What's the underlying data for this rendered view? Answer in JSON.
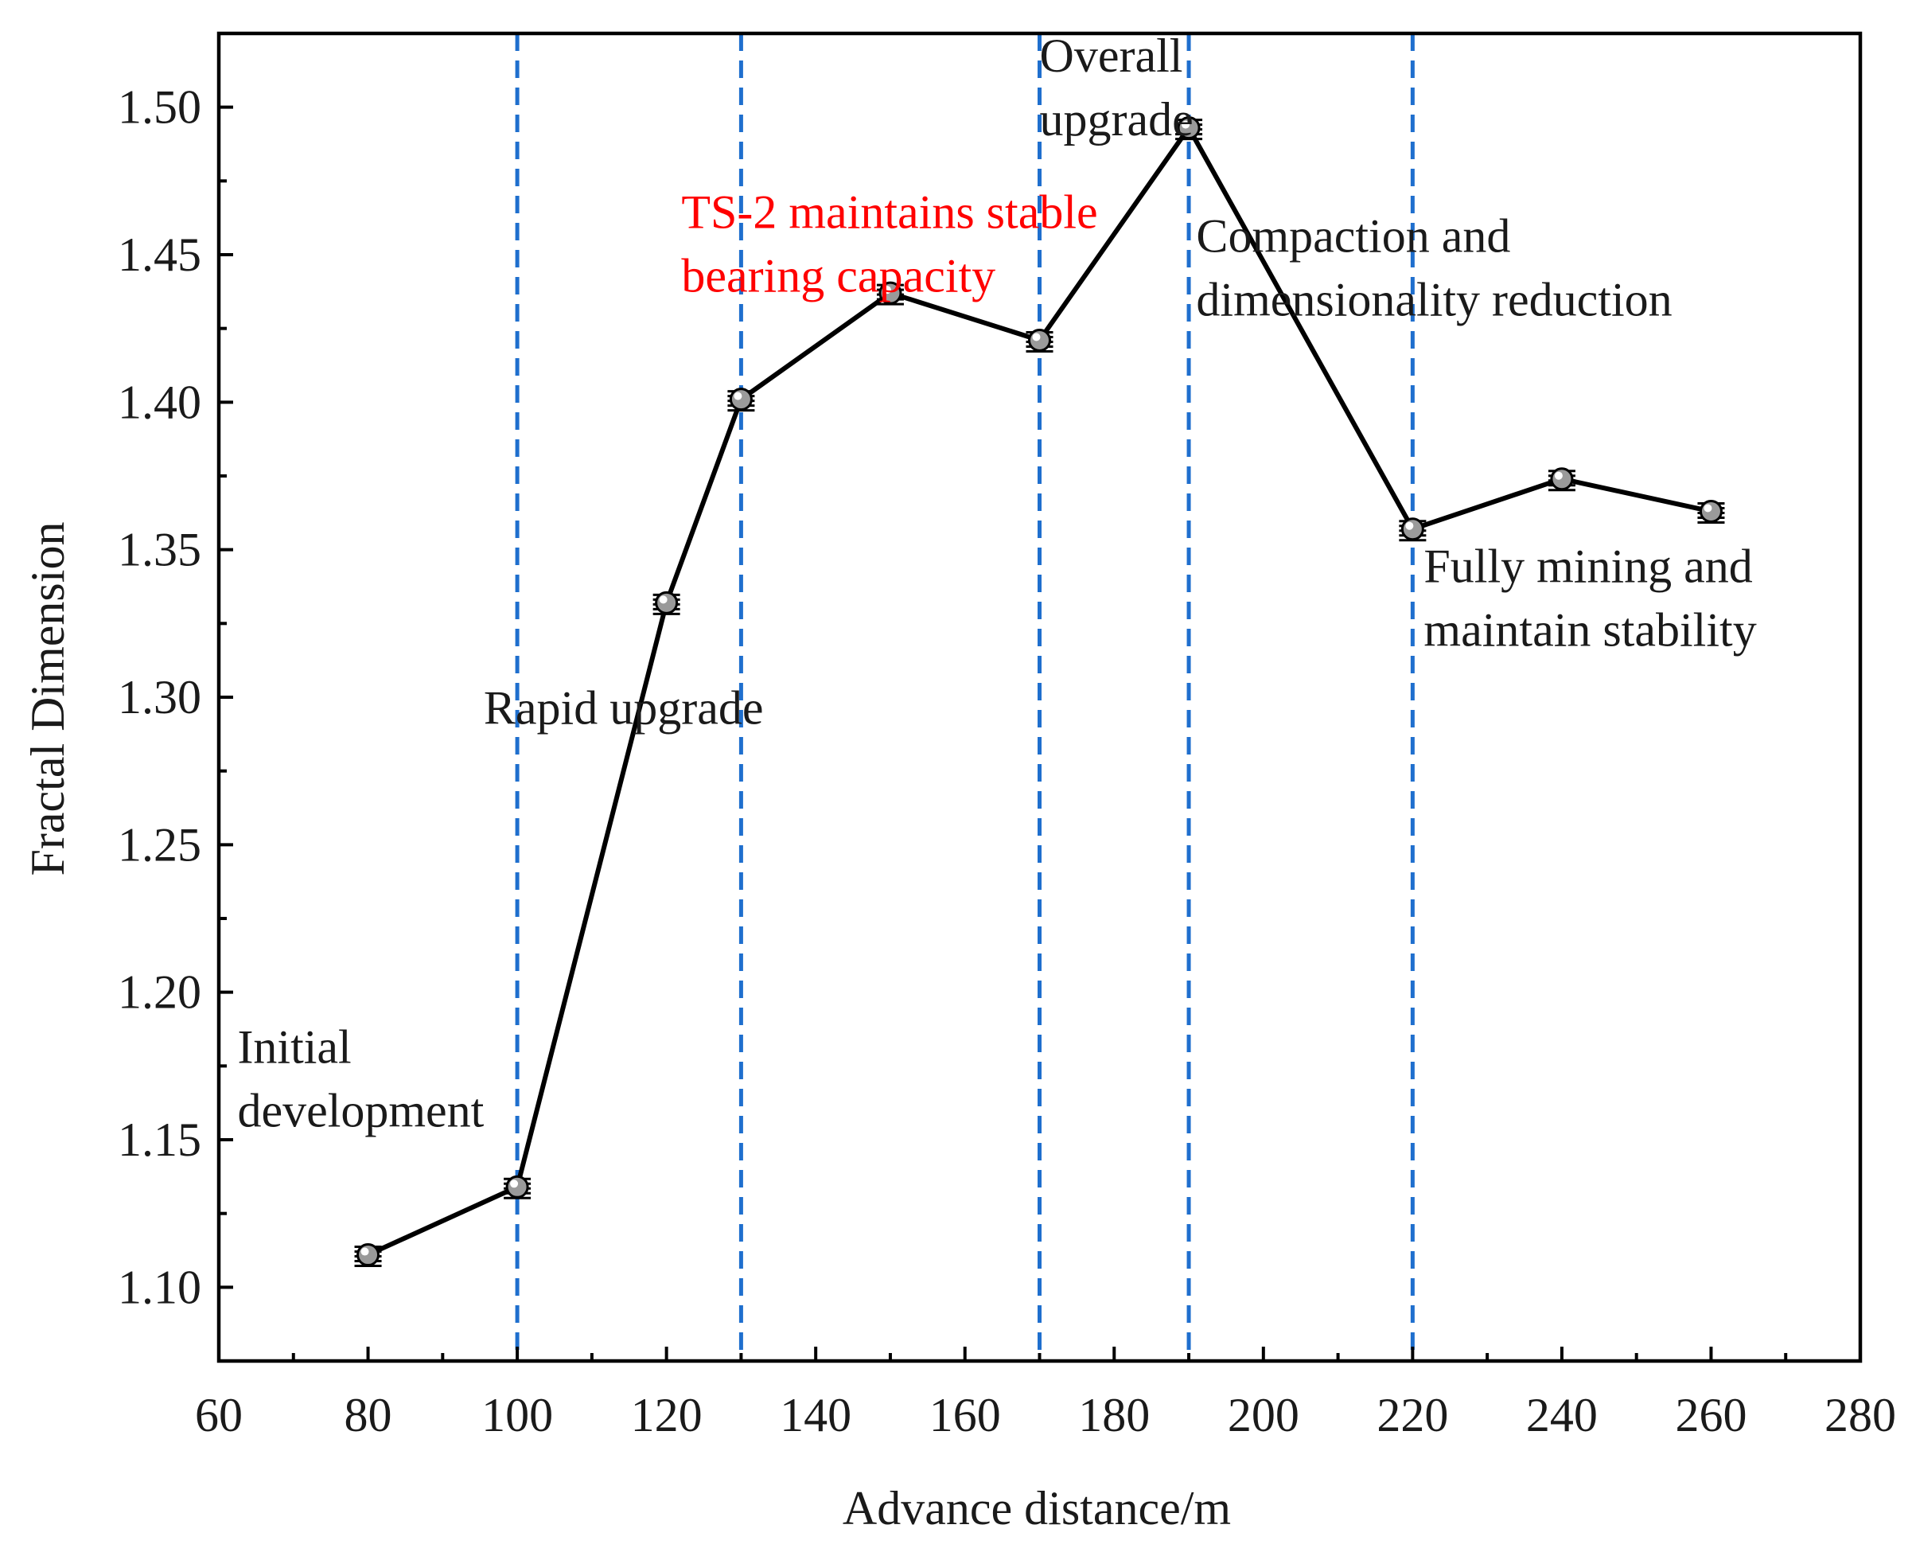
{
  "chart_data": {
    "type": "line",
    "title": "",
    "xlabel": "Advance distance/m",
    "ylabel": "Fractal Dimension",
    "xlim": [
      60,
      280
    ],
    "ylim": [
      1.075,
      1.525
    ],
    "xticks": [
      60,
      80,
      100,
      120,
      140,
      160,
      180,
      200,
      220,
      240,
      260,
      280
    ],
    "yticks": [
      1.1,
      1.15,
      1.2,
      1.25,
      1.3,
      1.35,
      1.4,
      1.45,
      1.5
    ],
    "xtick_labels": [
      "60",
      "80",
      "100",
      "120",
      "140",
      "160",
      "180",
      "200",
      "220",
      "240",
      "260",
      "280"
    ],
    "ytick_labels": [
      "1.10",
      "1.15",
      "1.20",
      "1.25",
      "1.30",
      "1.35",
      "1.40",
      "1.45",
      "1.50"
    ],
    "grid": false,
    "series": [
      {
        "name": "Fractal Dimension",
        "color": "#000000",
        "marker_color": "#9a9a9a",
        "x": [
          80,
          100,
          120,
          130,
          150,
          170,
          190,
          220,
          240,
          260
        ],
        "y": [
          1.111,
          1.134,
          1.332,
          1.401,
          1.437,
          1.421,
          1.493,
          1.357,
          1.374,
          1.363
        ]
      }
    ],
    "vlines": {
      "color": "#1f6fce",
      "style": "dashed",
      "x": [
        100,
        130,
        170,
        190,
        220
      ]
    },
    "annotations": [
      {
        "lines": [
          "Initial",
          "development"
        ],
        "x": 62.5,
        "y": 1.176,
        "color": "#1a1a1a"
      },
      {
        "lines": [
          "Rapid upgrade"
        ],
        "x": 95.5,
        "y": 1.291,
        "color": "#1a1a1a"
      },
      {
        "lines": [
          "TS-2 maintains stable",
          "bearing capacity"
        ],
        "x": 122,
        "y": 1.459,
        "color": "#ff0000"
      },
      {
        "lines": [
          "Overall",
          "upgrade"
        ],
        "x": 170,
        "y": 1.512,
        "color": "#1a1a1a"
      },
      {
        "lines": [
          "Compaction and",
          "dimensionality reduction"
        ],
        "x": 191,
        "y": 1.451,
        "color": "#1a1a1a"
      },
      {
        "lines": [
          "Fully mining and",
          "maintain stability"
        ],
        "x": 221.5,
        "y": 1.339,
        "color": "#1a1a1a"
      }
    ]
  }
}
